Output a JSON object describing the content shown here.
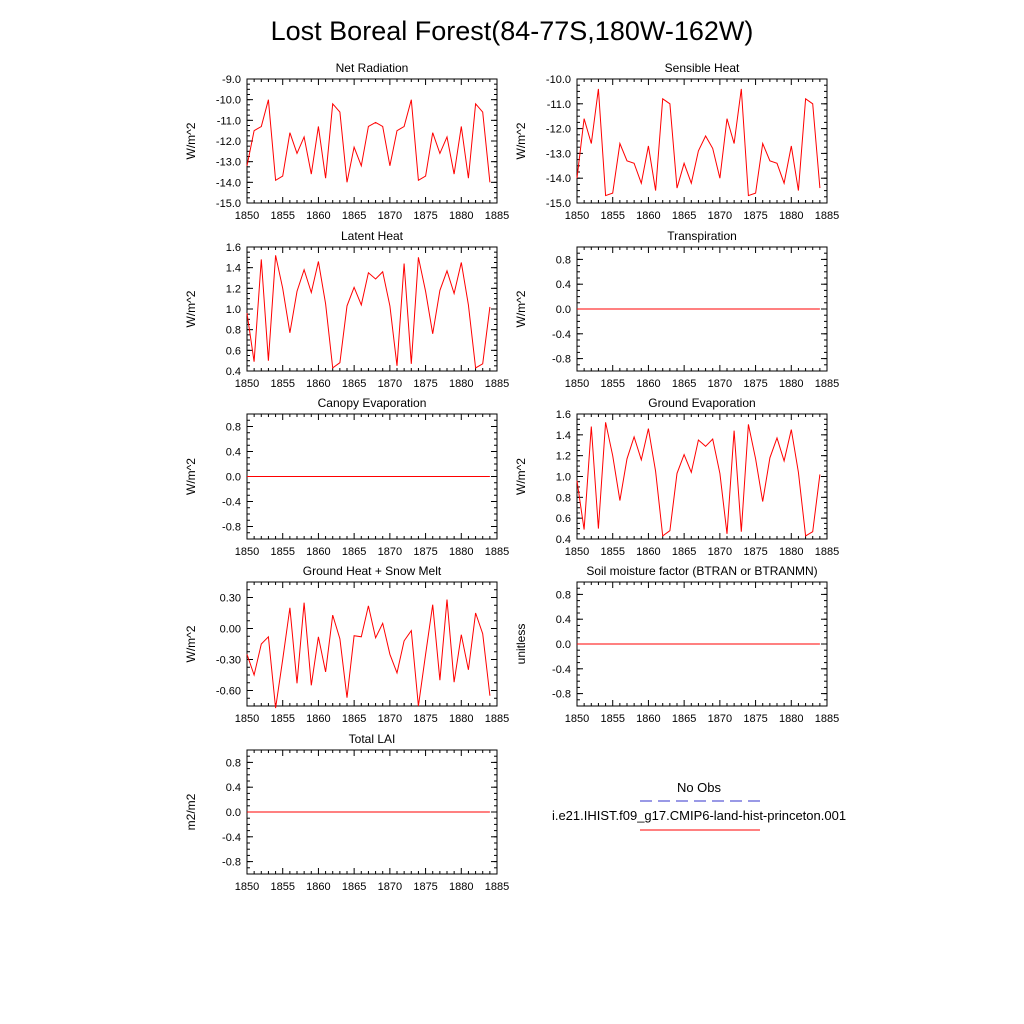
{
  "title": "Lost Boreal Forest(84-77S,180W-162W)",
  "colors": {
    "series": "#ff0000",
    "obs": "#3333cc",
    "axis": "#000000"
  },
  "legend": {
    "obs_label": "No Obs",
    "model_label": "i.e21.IHIST.f09_g17.CMIP6-land-hist-princeton.001"
  },
  "chart_data": [
    {
      "type": "line",
      "title": "Net Radiation",
      "ylabel": "W/m^2",
      "x": [
        1850,
        1851,
        1852,
        1853,
        1854,
        1855,
        1856,
        1857,
        1858,
        1859,
        1860,
        1861,
        1862,
        1863,
        1864,
        1865,
        1866,
        1867,
        1868,
        1869,
        1870,
        1871,
        1872,
        1873,
        1874,
        1875,
        1876,
        1877,
        1878,
        1879,
        1880,
        1881,
        1882,
        1883,
        1884
      ],
      "xlim": [
        1850,
        1885
      ],
      "xticks": [
        "1850",
        "1855",
        "1860",
        "1865",
        "1870",
        "1875",
        "1880",
        "1885"
      ],
      "ylim": [
        -15.0,
        -9.0
      ],
      "yticks": [
        "-15.0",
        "-14.0",
        "-13.0",
        "-12.0",
        "-11.0",
        "-10.0",
        "-9.0"
      ],
      "series": [
        {
          "values": [
            -13.2,
            -11.5,
            -11.3,
            -10.0,
            -13.9,
            -13.7,
            -11.6,
            -12.6,
            -11.8,
            -13.6,
            -11.3,
            -13.8,
            -10.2,
            -10.6,
            -14.0,
            -12.3,
            -13.2,
            -11.3,
            -11.1,
            -11.3,
            -13.2,
            -11.5,
            -11.3,
            -10.0,
            -13.9,
            -13.7,
            -11.6,
            -12.6,
            -11.8,
            -13.6,
            -11.3,
            -13.8,
            -10.2,
            -10.6,
            -14.0
          ]
        }
      ]
    },
    {
      "type": "line",
      "title": "Sensible Heat",
      "ylabel": "W/m^2",
      "x": [
        1850,
        1851,
        1852,
        1853,
        1854,
        1855,
        1856,
        1857,
        1858,
        1859,
        1860,
        1861,
        1862,
        1863,
        1864,
        1865,
        1866,
        1867,
        1868,
        1869,
        1870,
        1871,
        1872,
        1873,
        1874,
        1875,
        1876,
        1877,
        1878,
        1879,
        1880,
        1881,
        1882,
        1883,
        1884
      ],
      "xlim": [
        1850,
        1885
      ],
      "xticks": [
        "1850",
        "1855",
        "1860",
        "1865",
        "1870",
        "1875",
        "1880",
        "1885"
      ],
      "ylim": [
        -15.0,
        -10.0
      ],
      "yticks": [
        "-15.0",
        "-14.0",
        "-13.0",
        "-12.0",
        "-11.0",
        "-10.0"
      ],
      "series": [
        {
          "values": [
            -14.0,
            -11.6,
            -12.6,
            -10.4,
            -14.7,
            -14.6,
            -12.6,
            -13.3,
            -13.4,
            -14.2,
            -12.7,
            -14.5,
            -10.8,
            -11.0,
            -14.4,
            -13.4,
            -14.2,
            -12.9,
            -12.3,
            -12.8,
            -14.0,
            -11.6,
            -12.6,
            -10.4,
            -14.7,
            -14.6,
            -12.6,
            -13.3,
            -13.4,
            -14.2,
            -12.7,
            -14.5,
            -10.8,
            -11.0,
            -14.4
          ]
        }
      ]
    },
    {
      "type": "line",
      "title": "Latent Heat",
      "ylabel": "W/m^2",
      "x": [
        1850,
        1851,
        1852,
        1853,
        1854,
        1855,
        1856,
        1857,
        1858,
        1859,
        1860,
        1861,
        1862,
        1863,
        1864,
        1865,
        1866,
        1867,
        1868,
        1869,
        1870,
        1871,
        1872,
        1873,
        1874,
        1875,
        1876,
        1877,
        1878,
        1879,
        1880,
        1881,
        1882,
        1883,
        1884
      ],
      "xlim": [
        1850,
        1885
      ],
      "xticks": [
        "1850",
        "1855",
        "1860",
        "1865",
        "1870",
        "1875",
        "1880",
        "1885"
      ],
      "ylim": [
        0.4,
        1.6
      ],
      "yticks": [
        "0.4",
        "0.6",
        "0.8",
        "1.0",
        "1.2",
        "1.4",
        "1.6"
      ],
      "series": [
        {
          "values": [
            0.96,
            0.49,
            1.48,
            0.5,
            1.52,
            1.2,
            0.77,
            1.17,
            1.38,
            1.16,
            1.46,
            1.05,
            0.43,
            0.48,
            1.03,
            1.21,
            1.04,
            1.35,
            1.29,
            1.36,
            1.03,
            0.45,
            1.44,
            0.47,
            1.5,
            1.17,
            0.76,
            1.18,
            1.37,
            1.15,
            1.45,
            1.04,
            0.43,
            0.47,
            1.02
          ]
        }
      ]
    },
    {
      "type": "line",
      "title": "Transpiration",
      "ylabel": "W/m^2",
      "x": [
        1850,
        1851,
        1852,
        1853,
        1854,
        1855,
        1856,
        1857,
        1858,
        1859,
        1860,
        1861,
        1862,
        1863,
        1864,
        1865,
        1866,
        1867,
        1868,
        1869,
        1870,
        1871,
        1872,
        1873,
        1874,
        1875,
        1876,
        1877,
        1878,
        1879,
        1880,
        1881,
        1882,
        1883,
        1884
      ],
      "xlim": [
        1850,
        1885
      ],
      "xticks": [
        "1850",
        "1855",
        "1860",
        "1865",
        "1870",
        "1875",
        "1880",
        "1885"
      ],
      "ylim": [
        -1.0,
        1.0
      ],
      "yticks": [
        "-0.8",
        "-0.4",
        "0.0",
        "0.4",
        "0.8"
      ],
      "series": [
        {
          "values": [
            0,
            0,
            0,
            0,
            0,
            0,
            0,
            0,
            0,
            0,
            0,
            0,
            0,
            0,
            0,
            0,
            0,
            0,
            0,
            0,
            0,
            0,
            0,
            0,
            0,
            0,
            0,
            0,
            0,
            0,
            0,
            0,
            0,
            0,
            0
          ]
        }
      ]
    },
    {
      "type": "line",
      "title": "Canopy Evaporation",
      "ylabel": "W/m^2",
      "x": [
        1850,
        1851,
        1852,
        1853,
        1854,
        1855,
        1856,
        1857,
        1858,
        1859,
        1860,
        1861,
        1862,
        1863,
        1864,
        1865,
        1866,
        1867,
        1868,
        1869,
        1870,
        1871,
        1872,
        1873,
        1874,
        1875,
        1876,
        1877,
        1878,
        1879,
        1880,
        1881,
        1882,
        1883,
        1884
      ],
      "xlim": [
        1850,
        1885
      ],
      "xticks": [
        "1850",
        "1855",
        "1860",
        "1865",
        "1870",
        "1875",
        "1880",
        "1885"
      ],
      "ylim": [
        -1.0,
        1.0
      ],
      "yticks": [
        "-0.8",
        "-0.4",
        "0.0",
        "0.4",
        "0.8"
      ],
      "series": [
        {
          "values": [
            0,
            0,
            0,
            0,
            0,
            0,
            0,
            0,
            0,
            0,
            0,
            0,
            0,
            0,
            0,
            0,
            0,
            0,
            0,
            0,
            0,
            0,
            0,
            0,
            0,
            0,
            0,
            0,
            0,
            0,
            0,
            0,
            0,
            0,
            0
          ]
        }
      ]
    },
    {
      "type": "line",
      "title": "Ground Evaporation",
      "ylabel": "W/m^2",
      "x": [
        1850,
        1851,
        1852,
        1853,
        1854,
        1855,
        1856,
        1857,
        1858,
        1859,
        1860,
        1861,
        1862,
        1863,
        1864,
        1865,
        1866,
        1867,
        1868,
        1869,
        1870,
        1871,
        1872,
        1873,
        1874,
        1875,
        1876,
        1877,
        1878,
        1879,
        1880,
        1881,
        1882,
        1883,
        1884
      ],
      "xlim": [
        1850,
        1885
      ],
      "xticks": [
        "1850",
        "1855",
        "1860",
        "1865",
        "1870",
        "1875",
        "1880",
        "1885"
      ],
      "ylim": [
        0.4,
        1.6
      ],
      "yticks": [
        "0.4",
        "0.6",
        "0.8",
        "1.0",
        "1.2",
        "1.4",
        "1.6"
      ],
      "series": [
        {
          "values": [
            0.96,
            0.49,
            1.48,
            0.5,
            1.52,
            1.2,
            0.77,
            1.17,
            1.38,
            1.16,
            1.46,
            1.05,
            0.43,
            0.48,
            1.03,
            1.21,
            1.04,
            1.35,
            1.29,
            1.36,
            1.03,
            0.45,
            1.44,
            0.47,
            1.5,
            1.17,
            0.76,
            1.18,
            1.37,
            1.15,
            1.45,
            1.04,
            0.43,
            0.47,
            1.02
          ]
        }
      ]
    },
    {
      "type": "line",
      "title": "Ground Heat + Snow Melt",
      "ylabel": "W/m^2",
      "x": [
        1850,
        1851,
        1852,
        1853,
        1854,
        1855,
        1856,
        1857,
        1858,
        1859,
        1860,
        1861,
        1862,
        1863,
        1864,
        1865,
        1866,
        1867,
        1868,
        1869,
        1870,
        1871,
        1872,
        1873,
        1874,
        1875,
        1876,
        1877,
        1878,
        1879,
        1880,
        1881,
        1882,
        1883,
        1884
      ],
      "xlim": [
        1850,
        1885
      ],
      "xticks": [
        "1850",
        "1855",
        "1860",
        "1865",
        "1870",
        "1875",
        "1880",
        "1885"
      ],
      "ylim": [
        -0.75,
        0.45
      ],
      "yticks": [
        "-0.60",
        "-0.30",
        "0.00",
        "0.30"
      ],
      "series": [
        {
          "values": [
            -0.25,
            -0.45,
            -0.15,
            -0.08,
            -0.77,
            -0.3,
            0.2,
            -0.53,
            0.25,
            -0.55,
            -0.08,
            -0.42,
            0.13,
            -0.1,
            -0.67,
            -0.07,
            -0.08,
            0.22,
            -0.09,
            0.05,
            -0.25,
            -0.43,
            -0.12,
            -0.02,
            -0.75,
            -0.25,
            0.23,
            -0.5,
            0.28,
            -0.52,
            -0.06,
            -0.4,
            0.15,
            -0.05,
            -0.65
          ]
        }
      ]
    },
    {
      "type": "line",
      "title": "Soil moisture factor (BTRAN or BTRANMN)",
      "ylabel": "unitless",
      "x": [
        1850,
        1851,
        1852,
        1853,
        1854,
        1855,
        1856,
        1857,
        1858,
        1859,
        1860,
        1861,
        1862,
        1863,
        1864,
        1865,
        1866,
        1867,
        1868,
        1869,
        1870,
        1871,
        1872,
        1873,
        1874,
        1875,
        1876,
        1877,
        1878,
        1879,
        1880,
        1881,
        1882,
        1883,
        1884
      ],
      "xlim": [
        1850,
        1885
      ],
      "xticks": [
        "1850",
        "1855",
        "1860",
        "1865",
        "1870",
        "1875",
        "1880",
        "1885"
      ],
      "ylim": [
        -1.0,
        1.0
      ],
      "yticks": [
        "-0.8",
        "-0.4",
        "0.0",
        "0.4",
        "0.8"
      ],
      "series": [
        {
          "values": [
            0,
            0,
            0,
            0,
            0,
            0,
            0,
            0,
            0,
            0,
            0,
            0,
            0,
            0,
            0,
            0,
            0,
            0,
            0,
            0,
            0,
            0,
            0,
            0,
            0,
            0,
            0,
            0,
            0,
            0,
            0,
            0,
            0,
            0,
            0
          ]
        }
      ]
    },
    {
      "type": "line",
      "title": "Total LAI",
      "ylabel": "m2/m2",
      "x": [
        1850,
        1851,
        1852,
        1853,
        1854,
        1855,
        1856,
        1857,
        1858,
        1859,
        1860,
        1861,
        1862,
        1863,
        1864,
        1865,
        1866,
        1867,
        1868,
        1869,
        1870,
        1871,
        1872,
        1873,
        1874,
        1875,
        1876,
        1877,
        1878,
        1879,
        1880,
        1881,
        1882,
        1883,
        1884
      ],
      "xlim": [
        1850,
        1885
      ],
      "xticks": [
        "1850",
        "1855",
        "1860",
        "1865",
        "1870",
        "1875",
        "1880",
        "1885"
      ],
      "ylim": [
        -1.0,
        1.0
      ],
      "yticks": [
        "-0.8",
        "-0.4",
        "0.0",
        "0.4",
        "0.8"
      ],
      "series": [
        {
          "values": [
            0,
            0,
            0,
            0,
            0,
            0,
            0,
            0,
            0,
            0,
            0,
            0,
            0,
            0,
            0,
            0,
            0,
            0,
            0,
            0,
            0,
            0,
            0,
            0,
            0,
            0,
            0,
            0,
            0,
            0,
            0,
            0,
            0,
            0,
            0
          ]
        }
      ]
    }
  ]
}
